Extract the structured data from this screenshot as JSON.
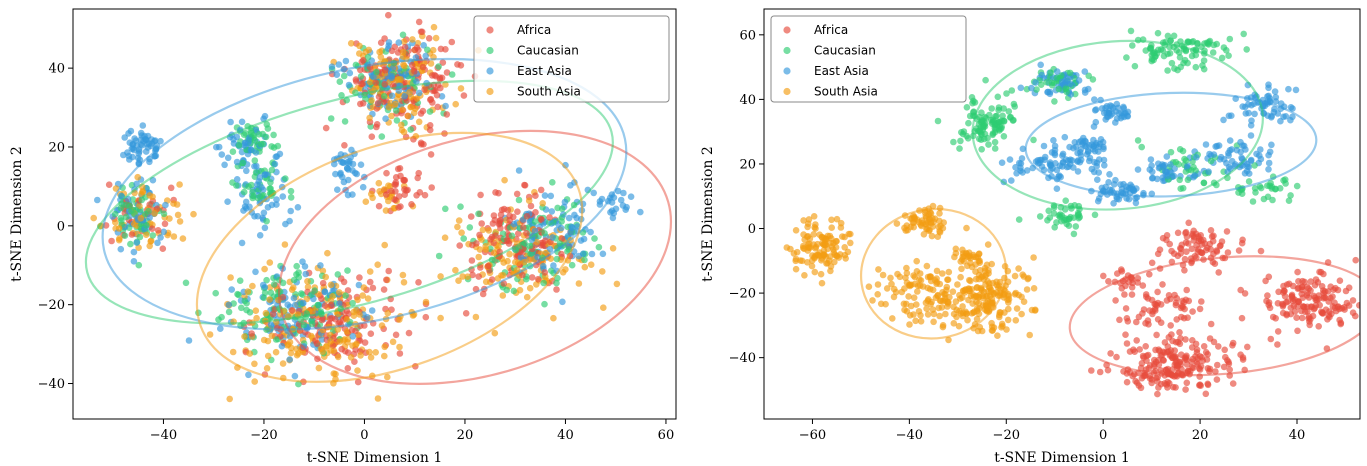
{
  "chart_data": [
    {
      "type": "scatter",
      "xlabel": "t-SNE Dimension 1",
      "ylabel": "t-SNE Dimension 2",
      "xlim": [
        -58,
        62
      ],
      "ylim": [
        -49,
        55
      ],
      "xticks": [
        -40,
        -20,
        0,
        20,
        40,
        60
      ],
      "yticks": [
        -40,
        -20,
        0,
        20,
        40
      ],
      "xtick_labels": [
        "−40",
        "−20",
        "0",
        "20",
        "40",
        "60"
      ],
      "ytick_labels": [
        "−40",
        "−20",
        "0",
        "20",
        "40"
      ],
      "grid": false,
      "legend_position": "top-right",
      "series": [
        {
          "name": "Africa",
          "color": "#e74c3c",
          "clusters": [
            {
              "x": 8,
              "y": 37,
              "sx": 6,
              "sy": 6,
              "n": 160
            },
            {
              "x": 30,
              "y": -5,
              "sx": 5,
              "sy": 6,
              "n": 140
            },
            {
              "x": -5,
              "y": -24,
              "sx": 8,
              "sy": 6,
              "n": 130
            },
            {
              "x": 7,
              "y": 9,
              "sx": 2.5,
              "sy": 2.5,
              "n": 35
            },
            {
              "x": -45,
              "y": 3,
              "sx": 3,
              "sy": 4,
              "n": 30
            }
          ],
          "ellipse": {
            "cx": 22,
            "cy": -8,
            "rx": 40,
            "ry": 30,
            "angle": -16
          }
        },
        {
          "name": "Caucasian",
          "color": "#2ecc71",
          "clusters": [
            {
              "x": -22,
              "y": 22,
              "sx": 2.5,
              "sy": 2.5,
              "n": 40
            },
            {
              "x": -21,
              "y": 10,
              "sx": 3,
              "sy": 3,
              "n": 40
            },
            {
              "x": -45,
              "y": 2,
              "sx": 3,
              "sy": 4,
              "n": 50
            },
            {
              "x": -15,
              "y": -20,
              "sx": 7,
              "sy": 6,
              "n": 110
            },
            {
              "x": 34,
              "y": -5,
              "sx": 6,
              "sy": 6,
              "n": 100
            },
            {
              "x": 5,
              "y": 37,
              "sx": 5,
              "sy": 6,
              "n": 70
            }
          ],
          "ellipse": {
            "cx": -3,
            "cy": 6,
            "rx": 54,
            "ry": 26,
            "angle": -15
          }
        },
        {
          "name": "East Asia",
          "color": "#3498db",
          "clusters": [
            {
              "x": -44,
              "y": 20,
              "sx": 1.8,
              "sy": 2.2,
              "n": 55
            },
            {
              "x": -45,
              "y": 3,
              "sx": 3,
              "sy": 4,
              "n": 55
            },
            {
              "x": -23,
              "y": 20,
              "sx": 3,
              "sy": 3,
              "n": 45
            },
            {
              "x": -21,
              "y": 7,
              "sx": 3,
              "sy": 5,
              "n": 55
            },
            {
              "x": -3,
              "y": 14,
              "sx": 2,
              "sy": 3,
              "n": 35
            },
            {
              "x": 4,
              "y": 38,
              "sx": 5,
              "sy": 5,
              "n": 90
            },
            {
              "x": 38,
              "y": 0,
              "sx": 5,
              "sy": 6,
              "n": 90
            },
            {
              "x": 51,
              "y": 5,
              "sx": 2,
              "sy": 2,
              "n": 20
            },
            {
              "x": -13,
              "y": -22,
              "sx": 7,
              "sy": 6,
              "n": 110
            }
          ],
          "ellipse": {
            "cx": 0,
            "cy": 8,
            "rx": 53,
            "ry": 32,
            "angle": -12
          }
        },
        {
          "name": "South Asia",
          "color": "#f39c12",
          "clusters": [
            {
              "x": 7,
              "y": 36,
              "sx": 5,
              "sy": 6,
              "n": 120
            },
            {
              "x": -44,
              "y": 3,
              "sx": 4,
              "sy": 4,
              "n": 60
            },
            {
              "x": -10,
              "y": -25,
              "sx": 9,
              "sy": 7,
              "n": 200
            },
            {
              "x": 30,
              "y": -8,
              "sx": 7,
              "sy": 6,
              "n": 120
            },
            {
              "x": 5,
              "y": 8,
              "sx": 2,
              "sy": 2,
              "n": 20
            }
          ],
          "ellipse": {
            "cx": 5,
            "cy": -8,
            "rx": 40,
            "ry": 28,
            "angle": -20
          }
        }
      ]
    },
    {
      "type": "scatter",
      "xlabel": "t-SNE Dimension 1",
      "ylabel": "t-SNE Dimension 2",
      "xlim": [
        -70,
        53
      ],
      "ylim": [
        -59,
        68
      ],
      "xticks": [
        -60,
        -40,
        -20,
        0,
        20,
        40
      ],
      "yticks": [
        -40,
        -20,
        0,
        20,
        40,
        60
      ],
      "xtick_labels": [
        "−60",
        "−40",
        "−20",
        "0",
        "20",
        "40"
      ],
      "ytick_labels": [
        "−40",
        "−20",
        "0",
        "20",
        "40",
        "60"
      ],
      "grid": false,
      "legend_position": "top-left",
      "series": [
        {
          "name": "Africa",
          "color": "#e74c3c",
          "clusters": [
            {
              "x": 15,
              "y": -42,
              "sx": 6,
              "sy": 4,
              "n": 200
            },
            {
              "x": 42,
              "y": -22,
              "sx": 5,
              "sy": 5,
              "n": 150
            },
            {
              "x": 20,
              "y": -6,
              "sx": 4,
              "sy": 3,
              "n": 80
            },
            {
              "x": 12,
              "y": -24,
              "sx": 5,
              "sy": 4,
              "n": 60
            },
            {
              "x": 5,
              "y": -16,
              "sx": 2,
              "sy": 2,
              "n": 20
            }
          ],
          "ellipse": {
            "cx": 25,
            "cy": -27,
            "rx": 32,
            "ry": 18,
            "angle": -5
          }
        },
        {
          "name": "Caucasian",
          "color": "#2ecc71",
          "clusters": [
            {
              "x": 16,
              "y": 55,
              "sx": 5,
              "sy": 3,
              "n": 90
            },
            {
              "x": -24,
              "y": 33,
              "sx": 3,
              "sy": 4,
              "n": 100
            },
            {
              "x": -9,
              "y": 45,
              "sx": 3,
              "sy": 2,
              "n": 40
            },
            {
              "x": -7,
              "y": 4,
              "sx": 3,
              "sy": 2,
              "n": 40
            },
            {
              "x": 33,
              "y": 12,
              "sx": 3,
              "sy": 2,
              "n": 30
            },
            {
              "x": 18,
              "y": 18,
              "sx": 5,
              "sy": 4,
              "n": 40
            }
          ],
          "ellipse": {
            "cx": 3,
            "cy": 32,
            "rx": 30,
            "ry": 26,
            "angle": -4
          }
        },
        {
          "name": "East Asia",
          "color": "#3498db",
          "clusters": [
            {
              "x": -10,
              "y": 20,
              "sx": 5,
              "sy": 3,
              "n": 80
            },
            {
              "x": -9,
              "y": 45,
              "sx": 3,
              "sy": 2,
              "n": 50
            },
            {
              "x": 2,
              "y": 36,
              "sx": 2,
              "sy": 2,
              "n": 40
            },
            {
              "x": -3,
              "y": 25,
              "sx": 2,
              "sy": 2,
              "n": 35
            },
            {
              "x": 33,
              "y": 38,
              "sx": 3,
              "sy": 3,
              "n": 60
            },
            {
              "x": 27,
              "y": 22,
              "sx": 4,
              "sy": 3,
              "n": 60
            },
            {
              "x": 3,
              "y": 11,
              "sx": 3,
              "sy": 2,
              "n": 50
            },
            {
              "x": 14,
              "y": 18,
              "sx": 3,
              "sy": 2,
              "n": 40
            }
          ],
          "ellipse": {
            "cx": 14,
            "cy": 26,
            "rx": 30,
            "ry": 16,
            "angle": -2
          }
        },
        {
          "name": "South Asia",
          "color": "#f39c12",
          "clusters": [
            {
              "x": -58,
              "y": -6,
              "sx": 3,
              "sy": 4,
              "n": 110
            },
            {
              "x": -37,
              "y": 2,
              "sx": 3,
              "sy": 2,
              "n": 60
            },
            {
              "x": -25,
              "y": -22,
              "sx": 5,
              "sy": 5,
              "n": 200
            },
            {
              "x": -38,
              "y": -19,
              "sx": 4,
              "sy": 4,
              "n": 90
            },
            {
              "x": -28,
              "y": -9,
              "sx": 2,
              "sy": 2,
              "n": 30
            }
          ],
          "ellipse": {
            "cx": -35,
            "cy": -14,
            "rx": 15,
            "ry": 20,
            "angle": -8
          }
        }
      ]
    }
  ]
}
